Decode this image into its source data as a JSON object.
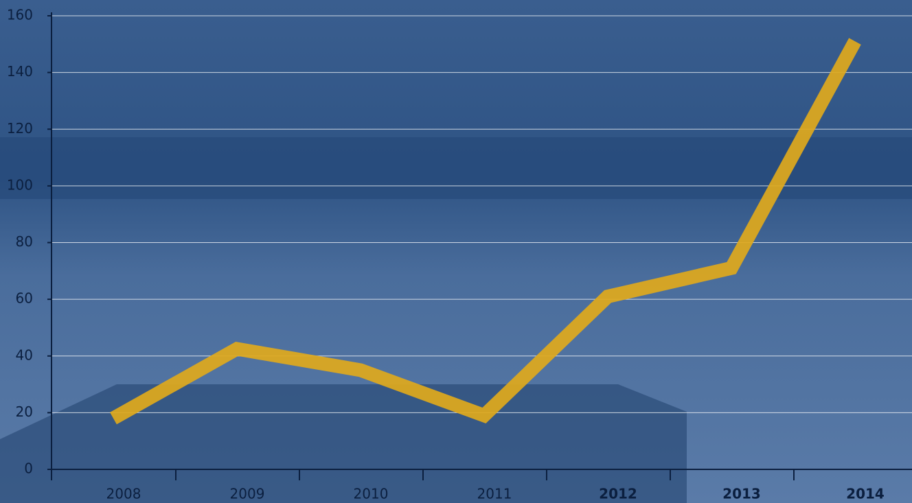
{
  "chart_data": {
    "type": "line",
    "categories": [
      "2008",
      "2009",
      "2010",
      "2011",
      "2012",
      "2013",
      "2014"
    ],
    "bold_labels": [
      false,
      false,
      false,
      false,
      true,
      true,
      true
    ],
    "series": [
      {
        "color": "#e0a91c",
        "values": [
          18,
          42.5,
          35,
          19,
          61,
          71,
          151
        ]
      }
    ],
    "ylim": [
      0,
      160
    ],
    "yticks": [
      0,
      20,
      40,
      60,
      80,
      100,
      120,
      140,
      160
    ],
    "grid": true
  }
}
